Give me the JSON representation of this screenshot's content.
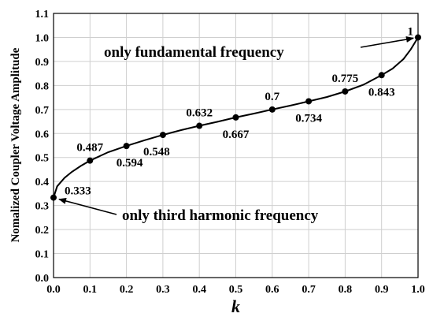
{
  "chart_data": {
    "type": "line",
    "title": "",
    "xlabel": "k",
    "ylabel": "Nomalized Coupler Voltage Amplitude",
    "xlim": [
      0,
      1
    ],
    "ylim": [
      0,
      1.1
    ],
    "grid": true,
    "x_ticks": [
      "0.0",
      "0.1",
      "0.2",
      "0.3",
      "0.4",
      "0.5",
      "0.6",
      "0.7",
      "0.8",
      "0.9",
      "1.0"
    ],
    "y_ticks": [
      "0.0",
      "0.1",
      "0.2",
      "0.3",
      "0.4",
      "0.5",
      "0.6",
      "0.7",
      "0.8",
      "0.9",
      "1.0",
      "1.1"
    ],
    "series": [
      {
        "x": [
          0.0,
          0.01,
          0.03,
          0.05,
          0.075,
          0.1,
          0.15,
          0.2,
          0.25,
          0.3,
          0.35,
          0.4,
          0.45,
          0.5,
          0.55,
          0.6,
          0.65,
          0.7,
          0.75,
          0.8,
          0.85,
          0.9,
          0.93,
          0.96,
          0.98,
          1.0
        ],
        "y": [
          0.333,
          0.38,
          0.415,
          0.44,
          0.465,
          0.487,
          0.522,
          0.548,
          0.572,
          0.594,
          0.614,
          0.632,
          0.649,
          0.667,
          0.683,
          0.7,
          0.716,
          0.734,
          0.752,
          0.775,
          0.803,
          0.843,
          0.87,
          0.91,
          0.95,
          1.0
        ]
      }
    ],
    "markers": [
      {
        "x": 0.0,
        "y": 0.333
      },
      {
        "x": 0.1,
        "y": 0.487
      },
      {
        "x": 0.2,
        "y": 0.548
      },
      {
        "x": 0.3,
        "y": 0.594
      },
      {
        "x": 0.4,
        "y": 0.632
      },
      {
        "x": 0.5,
        "y": 0.667
      },
      {
        "x": 0.6,
        "y": 0.7
      },
      {
        "x": 0.7,
        "y": 0.734
      },
      {
        "x": 0.8,
        "y": 0.775
      },
      {
        "x": 0.9,
        "y": 0.843
      },
      {
        "x": 1.0,
        "y": 1.0
      }
    ],
    "data_labels": [
      {
        "text": "0.333",
        "position": "right"
      },
      {
        "text": "0.487",
        "position": "above"
      },
      {
        "text": "0.594",
        "position": "below"
      },
      {
        "text": "0.548",
        "position": "below"
      },
      {
        "text": "0.632",
        "position": "above"
      },
      {
        "text": "0.667",
        "position": "below"
      },
      {
        "text": "0.7",
        "position": "above"
      },
      {
        "text": "0.734",
        "position": "below"
      },
      {
        "text": "0.775",
        "position": "above"
      },
      {
        "text": "0.843",
        "position": "below"
      },
      {
        "text": "1",
        "position": "left"
      }
    ],
    "annotations": [
      {
        "text": "only fundamental frequency",
        "target": {
          "x": 1.0,
          "y": 1.0
        }
      },
      {
        "text": "only third harmonic frequency",
        "target": {
          "x": 0.0,
          "y": 0.333
        }
      }
    ]
  }
}
